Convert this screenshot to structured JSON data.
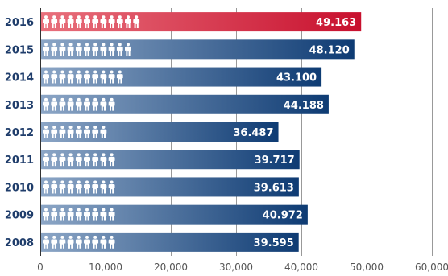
{
  "chart_data": {
    "type": "bar",
    "orientation": "horizontal",
    "categories": [
      "2016",
      "2015",
      "2014",
      "2013",
      "2012",
      "2011",
      "2010",
      "2009",
      "2008"
    ],
    "values": [
      49163,
      48120,
      43100,
      44188,
      36487,
      39717,
      39613,
      40972,
      39595
    ],
    "value_labels": [
      "49.163",
      "48.120",
      "43.100",
      "44.188",
      "36.487",
      "39.717",
      "39.613",
      "40.972",
      "39.595"
    ],
    "xlim": [
      0,
      60000
    ],
    "xticks": [
      0,
      10000,
      20000,
      30000,
      40000,
      50000,
      60000
    ],
    "xtick_labels": [
      "0",
      "10,000",
      "20,000",
      "30,000",
      "40,000",
      "50,000",
      "60,000"
    ],
    "title": "",
    "xlabel": "",
    "ylabel": "",
    "grid": "vertical",
    "person_icon_counts": [
      12,
      11,
      10,
      9,
      8,
      9,
      9,
      9,
      9
    ],
    "highlight_category": "2016",
    "colors": {
      "highlight_start": "#e8707c",
      "highlight_end": "#c8102e",
      "bar_start": "#8ca6c6",
      "bar_end": "#0e3b73",
      "year_text": "#1f3d6b",
      "grid": "#999999",
      "axis": "#333333"
    }
  }
}
